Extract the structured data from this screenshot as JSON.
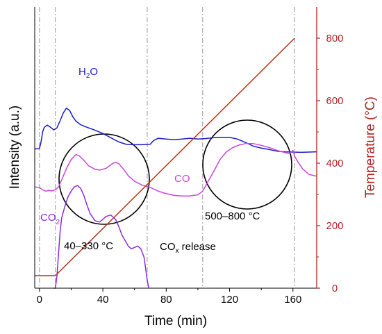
{
  "chart_data": {
    "type": "line",
    "title": "",
    "xlabel": "Time (min)",
    "ylabel_left": "Intensity (a.u.)",
    "ylabel_right": "Temperature (°C)",
    "xlim": [
      -3,
      175
    ],
    "ylim_right": [
      0,
      900
    ],
    "x_ticks": [
      0,
      40,
      80,
      120,
      160
    ],
    "y_right_ticks": [
      0,
      200,
      400,
      600,
      800
    ],
    "left_ticks_labeled": false,
    "colors": {
      "axis_right": "#b22222",
      "h2o": "#1a1acc",
      "co": "#cc44dd",
      "co2": "#8a2be2",
      "temperature": "#b83218",
      "marker_lines": "#a0a0a0",
      "circles": "#000000"
    },
    "vertical_markers": [
      0,
      10,
      68,
      103,
      161
    ],
    "series": [
      {
        "name": "H2O",
        "label_main": "H",
        "label_sub": "2",
        "label_tail": "O",
        "axis": "left",
        "points": [
          [
            -3,
            49.5
          ],
          [
            0,
            49.6
          ],
          [
            1,
            52
          ],
          [
            2,
            55.5
          ],
          [
            3,
            57.2
          ],
          [
            5,
            58
          ],
          [
            7,
            57.2
          ],
          [
            9,
            56.3
          ],
          [
            11,
            57
          ],
          [
            13,
            59.5
          ],
          [
            15,
            62.3
          ],
          [
            17,
            64
          ],
          [
            19,
            63.2
          ],
          [
            21,
            61
          ],
          [
            23,
            59.4
          ],
          [
            26,
            58.1
          ],
          [
            30,
            57.2
          ],
          [
            35,
            56.2
          ],
          [
            40,
            55
          ],
          [
            45,
            53.5
          ],
          [
            50,
            52
          ],
          [
            55,
            51.1
          ],
          [
            60,
            51
          ],
          [
            65,
            51
          ],
          [
            70,
            51.2
          ],
          [
            72,
            52.5
          ],
          [
            75,
            53.3
          ],
          [
            80,
            53
          ],
          [
            85,
            52.8
          ],
          [
            90,
            53
          ],
          [
            95,
            53.3
          ],
          [
            100,
            53
          ],
          [
            105,
            53.2
          ],
          [
            110,
            53.5
          ],
          [
            115,
            53.6
          ],
          [
            120,
            53.6
          ],
          [
            125,
            53
          ],
          [
            130,
            51.8
          ],
          [
            135,
            50.5
          ],
          [
            140,
            49.8
          ],
          [
            145,
            49.3
          ],
          [
            150,
            48.7
          ],
          [
            155,
            48.5
          ],
          [
            160,
            48.4
          ],
          [
            165,
            48.3
          ],
          [
            170,
            48.4
          ],
          [
            175,
            48.5
          ]
        ]
      },
      {
        "name": "CO",
        "label_main": "CO",
        "axis": "left",
        "points": [
          [
            -3,
            36
          ],
          [
            0,
            35.8
          ],
          [
            2,
            35
          ],
          [
            4,
            34.5
          ],
          [
            6,
            34.8
          ],
          [
            8,
            34.6
          ],
          [
            10,
            35
          ],
          [
            12,
            36
          ],
          [
            14,
            38.5
          ],
          [
            17,
            42.5
          ],
          [
            20,
            45.8
          ],
          [
            23,
            47.5
          ],
          [
            25,
            47.1
          ],
          [
            28,
            45.5
          ],
          [
            31,
            43.5
          ],
          [
            35,
            42.3
          ],
          [
            38,
            42
          ],
          [
            42,
            42.6
          ],
          [
            46,
            44.3
          ],
          [
            48,
            44.8
          ],
          [
            50,
            44.3
          ],
          [
            53,
            42.4
          ],
          [
            56,
            40
          ],
          [
            60,
            38
          ],
          [
            65,
            36.6
          ],
          [
            70,
            35.8
          ],
          [
            75,
            34.5
          ],
          [
            80,
            33.6
          ],
          [
            85,
            33
          ],
          [
            90,
            32.8
          ],
          [
            95,
            32.8
          ],
          [
            100,
            33.2
          ],
          [
            103,
            34.5
          ],
          [
            106,
            37.5
          ],
          [
            110,
            41.5
          ],
          [
            114,
            45.8
          ],
          [
            118,
            48.5
          ],
          [
            122,
            50
          ],
          [
            126,
            50.9
          ],
          [
            130,
            51.4
          ],
          [
            135,
            51.4
          ],
          [
            140,
            50.8
          ],
          [
            145,
            50
          ],
          [
            150,
            49
          ],
          [
            155,
            48.2
          ],
          [
            158,
            47.8
          ],
          [
            160,
            49
          ],
          [
            161,
            47
          ],
          [
            163,
            45
          ],
          [
            166,
            42.5
          ],
          [
            170,
            40.5
          ],
          [
            175,
            39.8
          ]
        ]
      },
      {
        "name": "CO2",
        "label_main": "CO",
        "label_sub": "2",
        "axis": "left",
        "points": [
          [
            9,
            0
          ],
          [
            10,
            0
          ],
          [
            11,
            4
          ],
          [
            12,
            12
          ],
          [
            13,
            20
          ],
          [
            14,
            25
          ],
          [
            16,
            29
          ],
          [
            18,
            32.5
          ],
          [
            20,
            34.5
          ],
          [
            22,
            36
          ],
          [
            24,
            36.5
          ],
          [
            26,
            35.5
          ],
          [
            28,
            33
          ],
          [
            30,
            29.5
          ],
          [
            32,
            26.5
          ],
          [
            35,
            24
          ],
          [
            38,
            23.5
          ],
          [
            40,
            24.5
          ],
          [
            42,
            25.5
          ],
          [
            45,
            26
          ],
          [
            48,
            24.5
          ],
          [
            50,
            22
          ],
          [
            52,
            19
          ],
          [
            54,
            17
          ],
          [
            56,
            15
          ],
          [
            58,
            14
          ],
          [
            60,
            14.5
          ],
          [
            62,
            15
          ],
          [
            64,
            14
          ],
          [
            66,
            11
          ],
          [
            68,
            3
          ],
          [
            69,
            0
          ]
        ]
      },
      {
        "name": "Temperature",
        "axis": "right",
        "points": [
          [
            -3,
            40
          ],
          [
            10,
            40
          ],
          [
            161,
            800
          ]
        ]
      }
    ],
    "annotations": [
      {
        "text": "40–330 °C"
      },
      {
        "main": "CO",
        "sub": "x",
        "tail": " release"
      },
      {
        "text": "500–800 °C"
      }
    ]
  }
}
